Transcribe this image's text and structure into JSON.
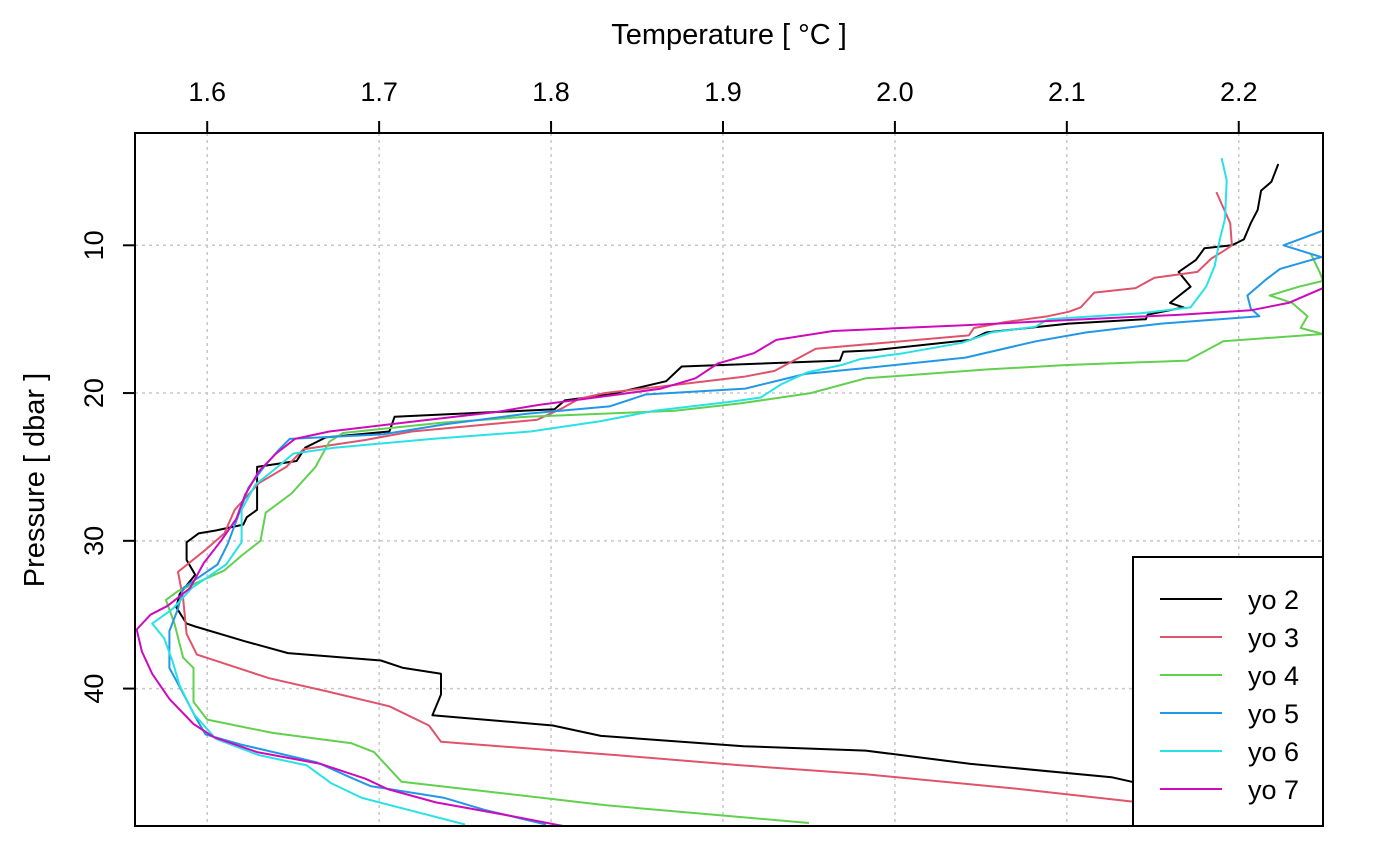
{
  "chart_data": {
    "type": "line",
    "title": "",
    "xlabel": "Temperature [ °C ]",
    "ylabel": "Pressure [ dbar ]",
    "x_axis_position": "top",
    "y_axis_reversed": true,
    "xlim": [
      1.558,
      2.249
    ],
    "ylim": [
      49.3,
      2.4
    ],
    "x_ticks": [
      1.6,
      1.7,
      1.8,
      1.9,
      2.0,
      2.1,
      2.2
    ],
    "x_tick_labels": [
      "1.6",
      "1.7",
      "1.8",
      "1.9",
      "2.0",
      "2.1",
      "2.2"
    ],
    "y_ticks": [
      10,
      20,
      30,
      40
    ],
    "y_tick_labels": [
      "10",
      "20",
      "30",
      "40"
    ],
    "grid": true,
    "legend_position": "bottom-right",
    "series": [
      {
        "name": "yo 2",
        "color": "#000000",
        "points": [
          [
            2.223,
            4.5
          ],
          [
            2.219,
            5.7
          ],
          [
            2.213,
            6.3
          ],
          [
            2.211,
            7.6
          ],
          [
            2.207,
            8.5
          ],
          [
            2.203,
            9.6
          ],
          [
            2.196,
            10.0
          ],
          [
            2.18,
            10.2
          ],
          [
            2.175,
            11.0
          ],
          [
            2.165,
            11.8
          ],
          [
            2.172,
            12.8
          ],
          [
            2.16,
            13.9
          ],
          [
            2.168,
            14.2
          ],
          [
            2.147,
            14.7
          ],
          [
            2.146,
            15.0
          ],
          [
            2.101,
            15.3
          ],
          [
            2.053,
            15.9
          ],
          [
            2.044,
            16.4
          ],
          [
            1.988,
            17.1
          ],
          [
            1.97,
            17.2
          ],
          [
            1.968,
            17.8
          ],
          [
            1.876,
            18.2
          ],
          [
            1.867,
            19.2
          ],
          [
            1.834,
            20.1
          ],
          [
            1.808,
            20.5
          ],
          [
            1.802,
            21.1
          ],
          [
            1.709,
            21.6
          ],
          [
            1.706,
            22.6
          ],
          [
            1.669,
            23.0
          ],
          [
            1.657,
            23.7
          ],
          [
            1.652,
            24.6
          ],
          [
            1.629,
            25.0
          ],
          [
            1.629,
            27.9
          ],
          [
            1.623,
            28.4
          ],
          [
            1.621,
            28.9
          ],
          [
            1.605,
            29.3
          ],
          [
            1.595,
            29.5
          ],
          [
            1.588,
            30.1
          ],
          [
            1.588,
            31.3
          ],
          [
            1.593,
            32.3
          ],
          [
            1.584,
            33.6
          ],
          [
            1.582,
            34.5
          ],
          [
            1.588,
            35.6
          ],
          [
            1.593,
            35.8
          ],
          [
            1.622,
            36.8
          ],
          [
            1.647,
            37.6
          ],
          [
            1.701,
            38.1
          ],
          [
            1.714,
            38.6
          ],
          [
            1.736,
            39.0
          ],
          [
            1.736,
            40.4
          ],
          [
            1.731,
            41.8
          ],
          [
            1.801,
            42.5
          ],
          [
            1.829,
            43.2
          ],
          [
            1.912,
            43.9
          ],
          [
            1.983,
            44.2
          ],
          [
            2.044,
            45.1
          ],
          [
            2.126,
            46.0
          ],
          [
            2.149,
            46.6
          ],
          [
            2.162,
            47.0
          ]
        ]
      },
      {
        "name": "yo 3",
        "color": "#df536b",
        "points": [
          [
            2.187,
            6.4
          ],
          [
            2.195,
            8.5
          ],
          [
            2.196,
            10.0
          ],
          [
            2.191,
            10.4
          ],
          [
            2.184,
            10.9
          ],
          [
            2.176,
            11.8
          ],
          [
            2.151,
            12.2
          ],
          [
            2.14,
            12.9
          ],
          [
            2.116,
            13.2
          ],
          [
            2.112,
            13.7
          ],
          [
            2.108,
            14.2
          ],
          [
            2.101,
            14.5
          ],
          [
            2.089,
            14.8
          ],
          [
            2.064,
            15.2
          ],
          [
            2.046,
            15.6
          ],
          [
            2.043,
            16.1
          ],
          [
            1.994,
            16.6
          ],
          [
            1.954,
            17.0
          ],
          [
            1.93,
            18.5
          ],
          [
            1.912,
            18.9
          ],
          [
            1.868,
            19.5
          ],
          [
            1.831,
            20.0
          ],
          [
            1.816,
            20.4
          ],
          [
            1.807,
            21.0
          ],
          [
            1.792,
            21.8
          ],
          [
            1.719,
            22.6
          ],
          [
            1.691,
            23.2
          ],
          [
            1.656,
            23.8
          ],
          [
            1.646,
            25.0
          ],
          [
            1.63,
            26.1
          ],
          [
            1.616,
            27.9
          ],
          [
            1.61,
            29.5
          ],
          [
            1.598,
            30.7
          ],
          [
            1.583,
            32.1
          ],
          [
            1.586,
            33.9
          ],
          [
            1.588,
            36.3
          ],
          [
            1.594,
            37.7
          ],
          [
            1.636,
            39.3
          ],
          [
            1.67,
            40.2
          ],
          [
            1.706,
            41.2
          ],
          [
            1.729,
            42.5
          ],
          [
            1.736,
            43.6
          ],
          [
            1.838,
            44.5
          ],
          [
            1.911,
            45.2
          ],
          [
            1.983,
            45.8
          ],
          [
            2.073,
            46.8
          ],
          [
            2.15,
            47.8
          ],
          [
            2.175,
            49.0
          ]
        ]
      },
      {
        "name": "yo 4",
        "color": "#61d04f",
        "points": [
          [
            2.242,
            10.6
          ],
          [
            2.247,
            11.8
          ],
          [
            2.249,
            12.4
          ],
          [
            2.235,
            12.8
          ],
          [
            2.218,
            13.4
          ],
          [
            2.231,
            13.9
          ],
          [
            2.24,
            14.8
          ],
          [
            2.236,
            15.6
          ],
          [
            2.249,
            16.0
          ],
          [
            2.191,
            16.5
          ],
          [
            2.17,
            17.8
          ],
          [
            2.1,
            18.1
          ],
          [
            2.054,
            18.4
          ],
          [
            1.983,
            19.0
          ],
          [
            1.951,
            20.0
          ],
          [
            1.91,
            20.7
          ],
          [
            1.872,
            21.2
          ],
          [
            1.786,
            21.6
          ],
          [
            1.737,
            22.0
          ],
          [
            1.679,
            22.7
          ],
          [
            1.671,
            23.3
          ],
          [
            1.663,
            25.0
          ],
          [
            1.649,
            26.8
          ],
          [
            1.634,
            28.1
          ],
          [
            1.631,
            30.0
          ],
          [
            1.62,
            31.0
          ],
          [
            1.61,
            32.0
          ],
          [
            1.583,
            33.4
          ],
          [
            1.576,
            34.0
          ],
          [
            1.581,
            35.6
          ],
          [
            1.586,
            37.9
          ],
          [
            1.592,
            38.6
          ],
          [
            1.592,
            40.9
          ],
          [
            1.6,
            42.1
          ],
          [
            1.638,
            43.0
          ],
          [
            1.684,
            43.7
          ],
          [
            1.697,
            44.3
          ],
          [
            1.713,
            46.3
          ],
          [
            1.773,
            47.1
          ],
          [
            1.832,
            47.9
          ],
          [
            1.95,
            49.1
          ]
        ]
      },
      {
        "name": "yo 5",
        "color": "#2297e6",
        "points": [
          [
            2.249,
            9.0
          ],
          [
            2.226,
            10.0
          ],
          [
            2.248,
            10.8
          ],
          [
            2.224,
            11.6
          ],
          [
            2.216,
            12.3
          ],
          [
            2.205,
            13.4
          ],
          [
            2.207,
            14.3
          ],
          [
            2.212,
            14.8
          ],
          [
            2.155,
            15.3
          ],
          [
            2.111,
            15.9
          ],
          [
            2.082,
            16.5
          ],
          [
            2.041,
            17.6
          ],
          [
            1.984,
            18.3
          ],
          [
            1.948,
            18.7
          ],
          [
            1.913,
            19.7
          ],
          [
            1.855,
            20.1
          ],
          [
            1.834,
            20.9
          ],
          [
            1.786,
            21.4
          ],
          [
            1.739,
            22.1
          ],
          [
            1.702,
            22.8
          ],
          [
            1.648,
            23.1
          ],
          [
            1.642,
            23.8
          ],
          [
            1.633,
            25.0
          ],
          [
            1.624,
            26.4
          ],
          [
            1.618,
            28.3
          ],
          [
            1.612,
            30.2
          ],
          [
            1.606,
            31.6
          ],
          [
            1.586,
            33.2
          ],
          [
            1.583,
            34.6
          ],
          [
            1.578,
            36.1
          ],
          [
            1.578,
            38.6
          ],
          [
            1.585,
            40.1
          ],
          [
            1.594,
            42.1
          ],
          [
            1.599,
            43.1
          ],
          [
            1.62,
            43.8
          ],
          [
            1.646,
            44.5
          ],
          [
            1.664,
            45.0
          ],
          [
            1.683,
            46.0
          ],
          [
            1.695,
            46.6
          ],
          [
            1.738,
            47.4
          ],
          [
            1.761,
            48.2
          ],
          [
            1.797,
            49.2
          ]
        ]
      },
      {
        "name": "yo 6",
        "color": "#28e2e5",
        "points": [
          [
            2.19,
            4.1
          ],
          [
            2.193,
            5.6
          ],
          [
            2.192,
            8.2
          ],
          [
            2.189,
            9.6
          ],
          [
            2.186,
            11.4
          ],
          [
            2.181,
            12.8
          ],
          [
            2.172,
            14.2
          ],
          [
            2.143,
            14.6
          ],
          [
            2.089,
            15.0
          ],
          [
            2.082,
            15.5
          ],
          [
            2.056,
            15.9
          ],
          [
            2.039,
            16.6
          ],
          [
            2.005,
            17.3
          ],
          [
            1.98,
            17.7
          ],
          [
            1.969,
            18.1
          ],
          [
            1.949,
            18.6
          ],
          [
            1.934,
            19.4
          ],
          [
            1.922,
            20.3
          ],
          [
            1.904,
            20.6
          ],
          [
            1.86,
            21.2
          ],
          [
            1.829,
            21.9
          ],
          [
            1.788,
            22.6
          ],
          [
            1.731,
            23.1
          ],
          [
            1.674,
            23.7
          ],
          [
            1.65,
            24.1
          ],
          [
            1.641,
            25.0
          ],
          [
            1.628,
            26.2
          ],
          [
            1.62,
            27.9
          ],
          [
            1.62,
            30.1
          ],
          [
            1.611,
            31.6
          ],
          [
            1.591,
            33.2
          ],
          [
            1.58,
            34.6
          ],
          [
            1.568,
            35.6
          ],
          [
            1.575,
            36.6
          ],
          [
            1.58,
            38.2
          ],
          [
            1.584,
            39.8
          ],
          [
            1.592,
            41.7
          ],
          [
            1.605,
            43.4
          ],
          [
            1.63,
            44.5
          ],
          [
            1.658,
            45.2
          ],
          [
            1.672,
            46.4
          ],
          [
            1.69,
            47.4
          ],
          [
            1.72,
            48.3
          ],
          [
            1.75,
            49.2
          ]
        ]
      },
      {
        "name": "yo 7",
        "color": "#cd0bbc",
        "points": [
          [
            2.249,
            12.9
          ],
          [
            2.229,
            13.9
          ],
          [
            2.207,
            14.4
          ],
          [
            2.166,
            14.7
          ],
          [
            2.11,
            15.0
          ],
          [
            2.042,
            15.4
          ],
          [
            1.964,
            15.8
          ],
          [
            1.931,
            16.4
          ],
          [
            1.918,
            17.3
          ],
          [
            1.897,
            18.0
          ],
          [
            1.884,
            19.0
          ],
          [
            1.864,
            19.7
          ],
          [
            1.839,
            20.1
          ],
          [
            1.793,
            20.8
          ],
          [
            1.767,
            21.3
          ],
          [
            1.722,
            21.9
          ],
          [
            1.671,
            22.6
          ],
          [
            1.651,
            23.1
          ],
          [
            1.64,
            24.1
          ],
          [
            1.63,
            25.3
          ],
          [
            1.622,
            26.9
          ],
          [
            1.617,
            28.5
          ],
          [
            1.608,
            30.0
          ],
          [
            1.598,
            31.5
          ],
          [
            1.59,
            33.2
          ],
          [
            1.577,
            34.4
          ],
          [
            1.567,
            35.0
          ],
          [
            1.559,
            36.0
          ],
          [
            1.562,
            37.5
          ],
          [
            1.568,
            39.0
          ],
          [
            1.578,
            40.7
          ],
          [
            1.592,
            42.4
          ],
          [
            1.604,
            43.3
          ],
          [
            1.629,
            44.3
          ],
          [
            1.666,
            45.1
          ],
          [
            1.692,
            46.1
          ],
          [
            1.705,
            46.8
          ],
          [
            1.733,
            47.7
          ],
          [
            1.776,
            48.6
          ],
          [
            1.807,
            49.3
          ]
        ]
      }
    ]
  }
}
